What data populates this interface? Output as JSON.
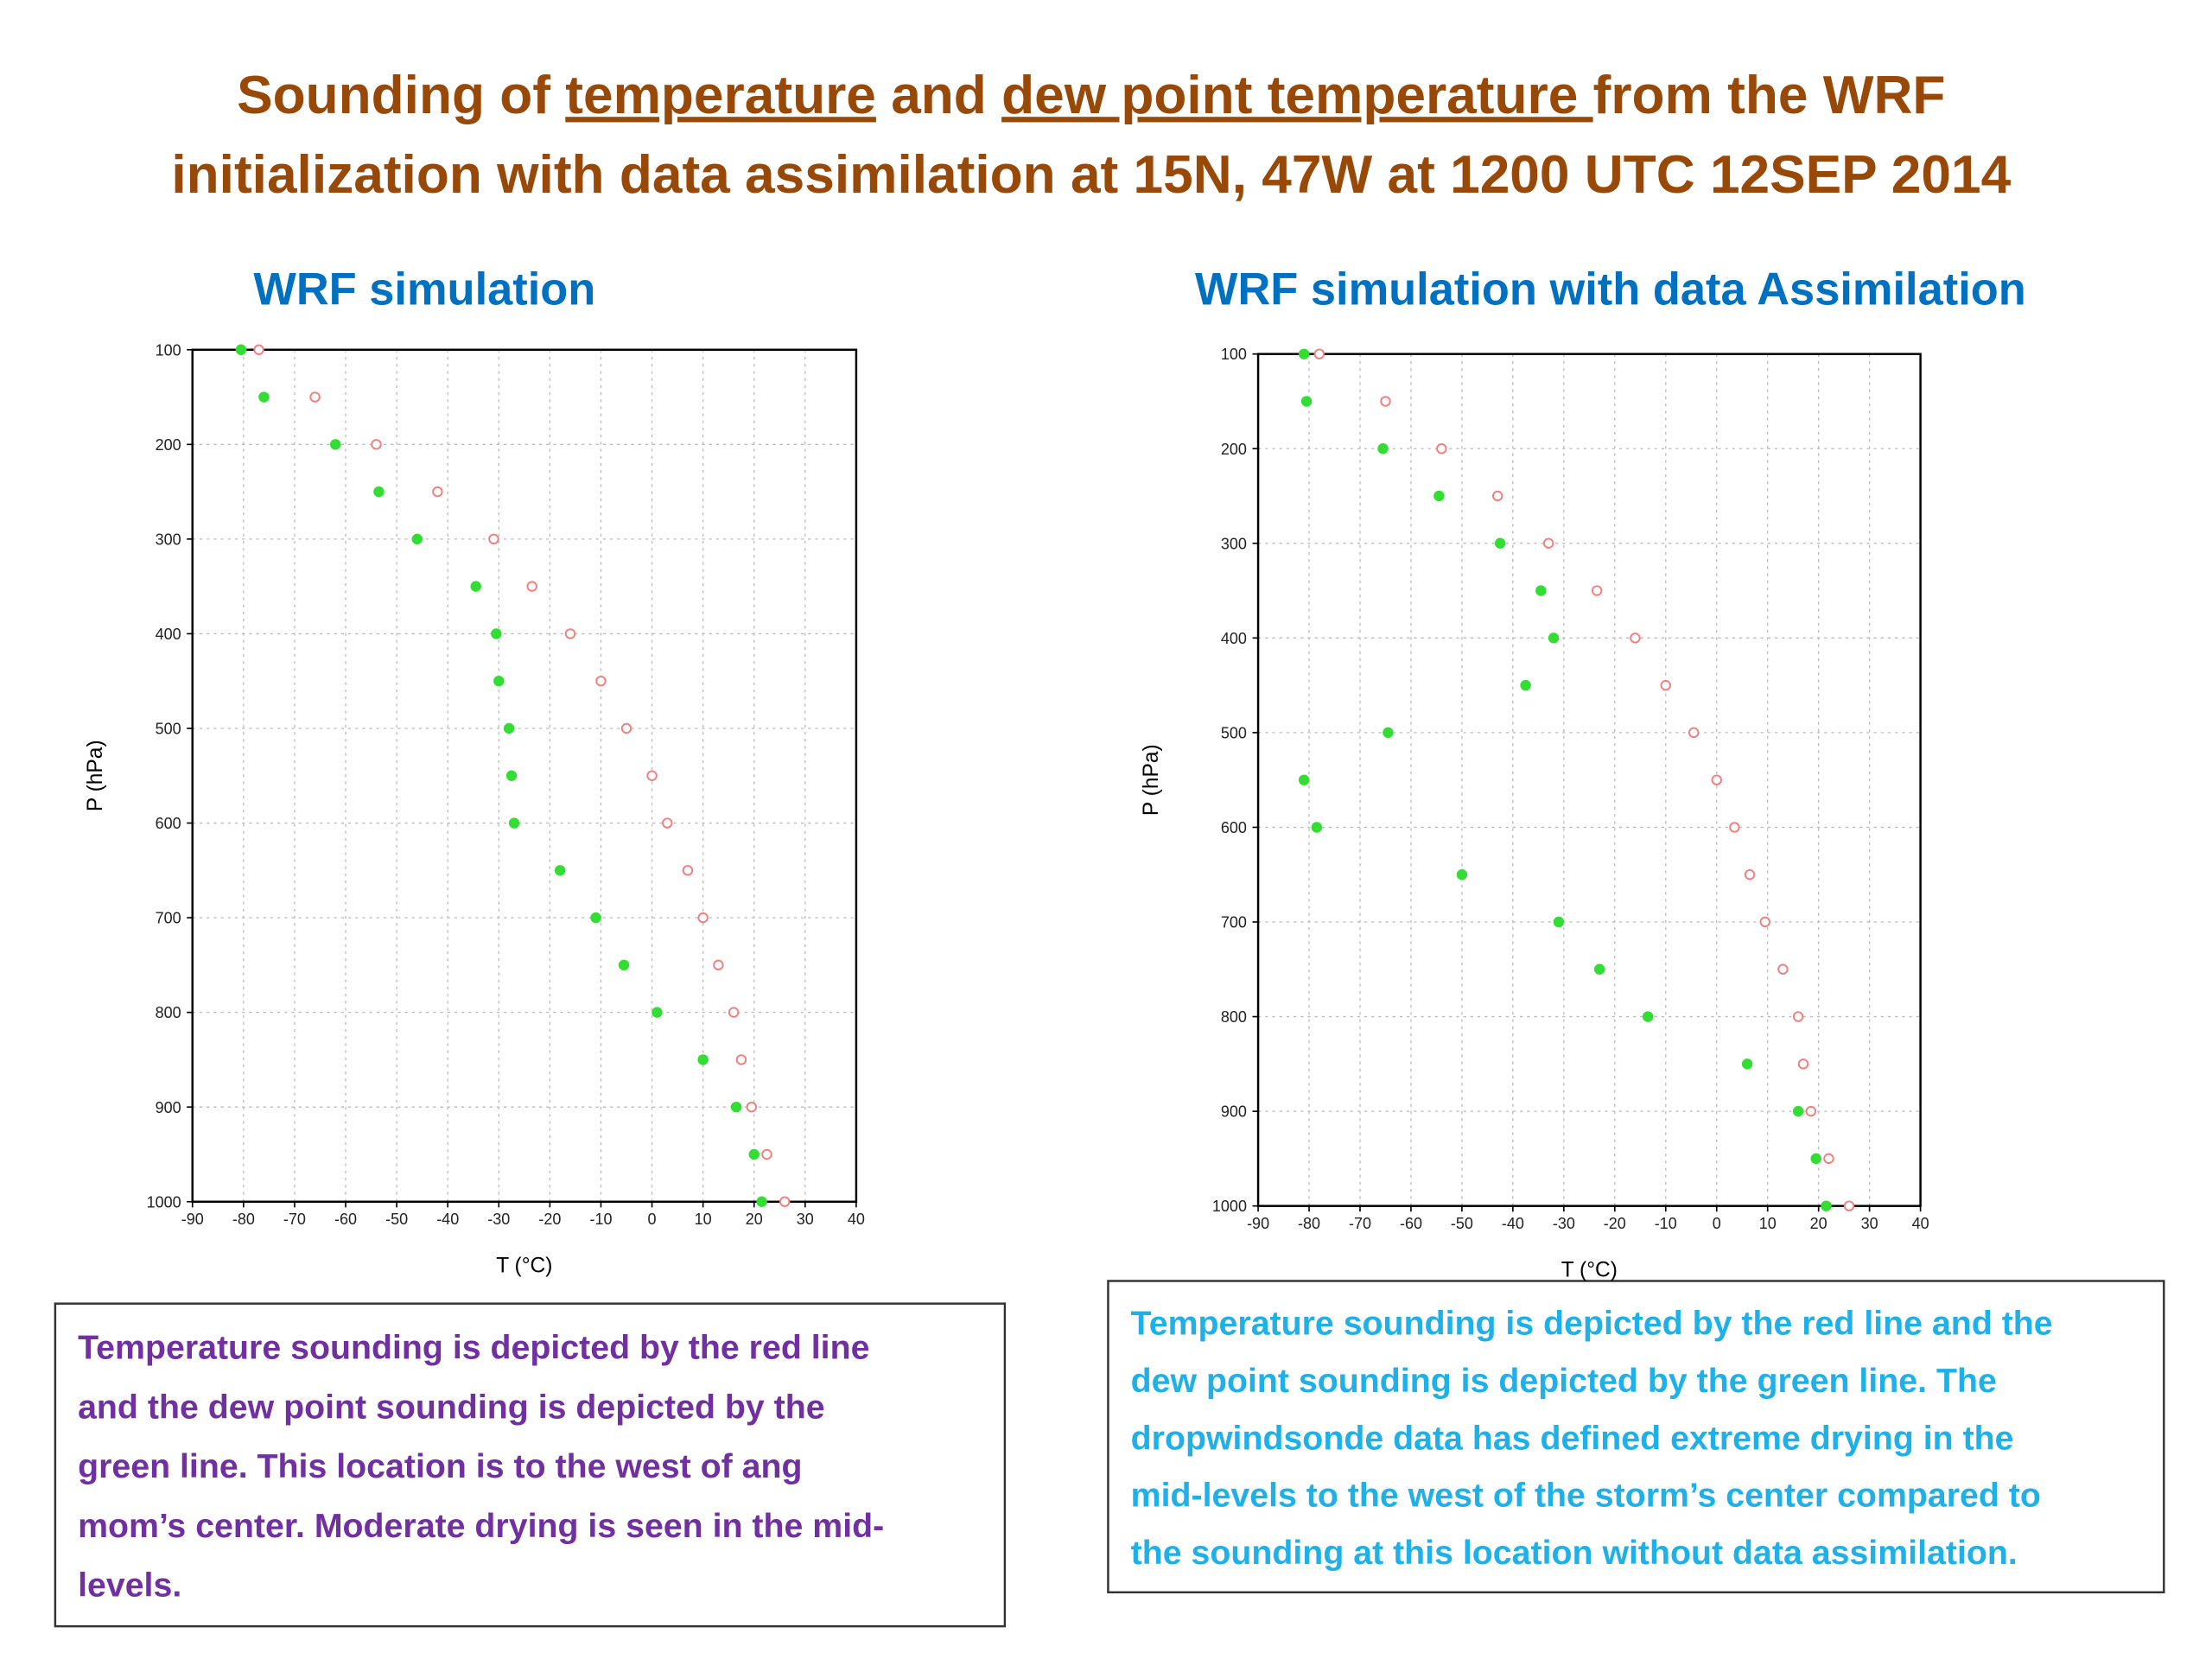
{
  "title": [
    "Sounding of ",
    "temperature",
    " and ",
    "dew point temperature ",
    "from the WRF",
    "initialization with data assimilation at 15N, 47W at 1200 UTC 12SEP 2014"
  ],
  "chart_data": [
    {
      "type": "line",
      "title": "WRF simulation",
      "x_label": "T (°C)",
      "y_label": "P (hPa)",
      "levels": [
        100,
        150,
        200,
        250,
        300,
        350,
        400,
        450,
        500,
        550,
        600,
        650,
        700,
        750,
        800,
        850,
        900,
        950,
        1000
      ],
      "series": [
        {
          "color": "#f08080",
          "marker": "open",
          "values": [
            -77,
            -66,
            -54,
            -42,
            -31,
            -23.5,
            -16,
            -10,
            -5,
            0,
            3,
            7,
            10,
            13,
            16,
            17.5,
            19.5,
            22.5,
            26
          ]
        },
        {
          "color": "#33dd33",
          "marker": "filled",
          "values": [
            -80.5,
            -76,
            -62,
            -53.5,
            -46,
            -34.5,
            -30.5,
            -30,
            -28,
            -27.5,
            -27,
            -18,
            -11,
            -5.5,
            1,
            10,
            16.5,
            20,
            21.5
          ]
        }
      ],
      "xlim": [
        -90,
        40
      ],
      "xticks": [
        -90,
        -80,
        -70,
        -60,
        -50,
        -40,
        -30,
        -20,
        -10,
        0,
        10,
        20,
        30,
        40
      ],
      "ylim": [
        100,
        1000
      ],
      "yticks": [
        100,
        200,
        300,
        400,
        500,
        600,
        700,
        800,
        900,
        1000
      ],
      "y_inverted": true,
      "grid": true
    },
    {
      "type": "line",
      "title": "WRF simulation with data Assimilation",
      "x_label": "T (°C)",
      "y_label": "P (hPa)",
      "levels": [
        100,
        150,
        200,
        250,
        300,
        350,
        400,
        450,
        500,
        550,
        600,
        650,
        700,
        750,
        800,
        850,
        900,
        950,
        1000
      ],
      "series": [
        {
          "color": "#f08080",
          "marker": "open",
          "values": [
            -78,
            -65,
            -54,
            -43,
            -33,
            -23.5,
            -16,
            -10,
            -4.5,
            0,
            3.5,
            6.5,
            9.5,
            13,
            16,
            17,
            18.5,
            22,
            26
          ]
        },
        {
          "color": "#33dd33",
          "marker": "filled",
          "values": [
            -81,
            -80.5,
            -65.5,
            -54.5,
            -42.5,
            -34.5,
            -32,
            -37.5,
            -64.5,
            -81,
            -78.5,
            -50,
            -31,
            -23,
            -13.5,
            6,
            16,
            19.5,
            21.5
          ]
        }
      ],
      "xlim": [
        -90,
        40
      ],
      "xticks": [
        -90,
        -80,
        -70,
        -60,
        -50,
        -40,
        -30,
        -20,
        -10,
        0,
        10,
        20,
        30,
        40
      ],
      "ylim": [
        100,
        1000
      ],
      "yticks": [
        100,
        200,
        300,
        400,
        500,
        600,
        700,
        800,
        900,
        1000
      ],
      "y_inverted": true,
      "grid": true
    }
  ],
  "captions": [
    [
      "Temperature sounding is depicted by the red line",
      "and the dew point sounding is depicted by the",
      "green line. This location is to the west of ang",
      "mom’s center. Moderate drying is seen in the mid-",
      "levels."
    ],
    [
      "Temperature sounding is depicted by the red line and the",
      "dew point sounding is depicted by the green line. The",
      "dropwindsonde data has defined extreme drying in the",
      "mid-levels to the west of the storm’s center compared to",
      "the sounding at this location without data assimilation."
    ]
  ]
}
